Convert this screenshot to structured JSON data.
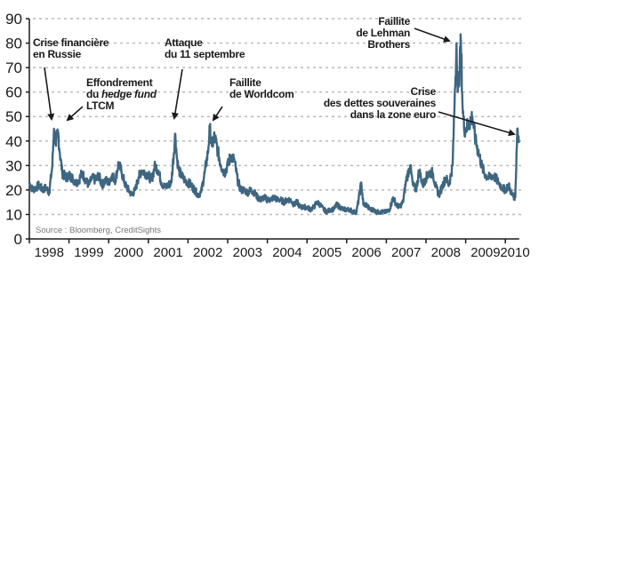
{
  "chart_data": {
    "type": "line",
    "title": "",
    "xlabel": "",
    "ylabel": "",
    "ylim": [
      0,
      90
    ],
    "yticks": [
      "0",
      "10",
      "20",
      "30",
      "40",
      "50",
      "60",
      "70",
      "80",
      "90"
    ],
    "xlim": [
      1998.0,
      2010.35
    ],
    "xtick_labels": [
      "1998",
      "1999",
      "2000",
      "2001",
      "2002",
      "2003",
      "2004",
      "2005",
      "2006",
      "2007",
      "2008",
      "2009",
      "2010"
    ],
    "grid": "horizontal dotted",
    "line_color": "#3e6680",
    "source": "Source : Bloomberg, CreditSights",
    "annotations": [
      {
        "text": [
          "Crise financière",
          "en Russie"
        ],
        "x": 1998.6,
        "y": 45
      },
      {
        "text": [
          "Effondrement",
          "du hedge fund",
          "LTCM"
        ],
        "x": 1998.75,
        "y": 45
      },
      {
        "text": [
          "Attaque",
          "du 11 septembre"
        ],
        "x": 2001.7,
        "y": 43
      },
      {
        "text": [
          "Faillite",
          "de Worldcom"
        ],
        "x": 2002.55,
        "y": 45
      },
      {
        "text": [
          "Faillite",
          "de Lehman",
          "Brothers"
        ],
        "x": 2008.8,
        "y": 80
      },
      {
        "text": [
          "Crise",
          "des dettes souveraines",
          "dans la zone euro"
        ],
        "x": 2010.3,
        "y": 44
      }
    ],
    "x": [
      1998.0,
      1998.08,
      1998.17,
      1998.25,
      1998.33,
      1998.42,
      1998.5,
      1998.58,
      1998.62,
      1998.67,
      1998.72,
      1998.77,
      1998.83,
      1998.92,
      1999.0,
      1999.08,
      1999.17,
      1999.25,
      1999.33,
      1999.42,
      1999.5,
      1999.58,
      1999.67,
      1999.75,
      1999.83,
      1999.92,
      2000.0,
      2000.08,
      2000.17,
      2000.25,
      2000.33,
      2000.42,
      2000.5,
      2000.58,
      2000.67,
      2000.75,
      2000.83,
      2000.92,
      2001.0,
      2001.08,
      2001.17,
      2001.25,
      2001.33,
      2001.42,
      2001.5,
      2001.58,
      2001.68,
      2001.72,
      2001.77,
      2001.83,
      2001.92,
      2002.0,
      2002.08,
      2002.17,
      2002.25,
      2002.33,
      2002.42,
      2002.5,
      2002.55,
      2002.6,
      2002.67,
      2002.75,
      2002.83,
      2002.92,
      2003.0,
      2003.08,
      2003.17,
      2003.25,
      2003.33,
      2003.42,
      2003.5,
      2003.58,
      2003.67,
      2003.75,
      2003.83,
      2003.92,
      2004.0,
      2004.08,
      2004.17,
      2004.25,
      2004.33,
      2004.42,
      2004.5,
      2004.58,
      2004.67,
      2004.75,
      2004.83,
      2004.92,
      2005.0,
      2005.08,
      2005.17,
      2005.25,
      2005.33,
      2005.42,
      2005.5,
      2005.58,
      2005.67,
      2005.75,
      2005.83,
      2005.92,
      2006.0,
      2006.08,
      2006.17,
      2006.25,
      2006.37,
      2006.42,
      2006.5,
      2006.58,
      2006.67,
      2006.75,
      2006.83,
      2006.92,
      2007.0,
      2007.08,
      2007.17,
      2007.25,
      2007.33,
      2007.42,
      2007.5,
      2007.6,
      2007.67,
      2007.75,
      2007.83,
      2007.92,
      2008.0,
      2008.08,
      2008.17,
      2008.25,
      2008.33,
      2008.42,
      2008.5,
      2008.58,
      2008.67,
      2008.72,
      2008.77,
      2008.8,
      2008.85,
      2008.88,
      2008.92,
      2008.96,
      2009.0,
      2009.08,
      2009.17,
      2009.25,
      2009.33,
      2009.42,
      2009.5,
      2009.58,
      2009.67,
      2009.75,
      2009.83,
      2009.92,
      2010.0,
      2010.08,
      2010.17,
      2010.25,
      2010.3,
      2010.35
    ],
    "y": [
      23,
      20,
      21,
      22,
      20,
      21,
      19,
      30,
      45,
      38,
      44,
      35,
      27,
      25,
      26,
      25,
      23,
      24,
      27,
      24,
      22,
      25,
      24,
      26,
      22,
      24,
      23,
      26,
      24,
      31,
      27,
      22,
      20,
      18,
      20,
      25,
      28,
      27,
      26,
      24,
      30,
      28,
      23,
      21,
      22,
      23,
      43,
      33,
      28,
      26,
      24,
      23,
      22,
      20,
      18,
      19,
      27,
      35,
      45,
      38,
      42,
      36,
      30,
      27,
      30,
      34,
      32,
      24,
      20,
      20,
      19,
      20,
      19,
      17,
      16,
      17,
      16,
      16,
      17,
      16,
      16,
      15,
      16,
      16,
      14,
      15,
      13,
      13,
      13,
      12,
      13,
      15,
      14,
      12,
      11,
      12,
      12,
      14,
      13,
      12,
      12,
      12,
      11,
      11,
      23,
      14,
      14,
      12,
      12,
      11,
      11,
      11,
      11,
      12,
      17,
      14,
      13,
      15,
      24,
      30,
      22,
      20,
      28,
      22,
      25,
      27,
      27,
      21,
      18,
      22,
      25,
      22,
      30,
      55,
      80,
      60,
      70,
      81,
      55,
      45,
      45,
      47,
      50,
      40,
      35,
      29,
      26,
      25,
      26,
      25,
      23,
      21,
      20,
      22,
      18,
      17,
      45,
      40
    ]
  }
}
